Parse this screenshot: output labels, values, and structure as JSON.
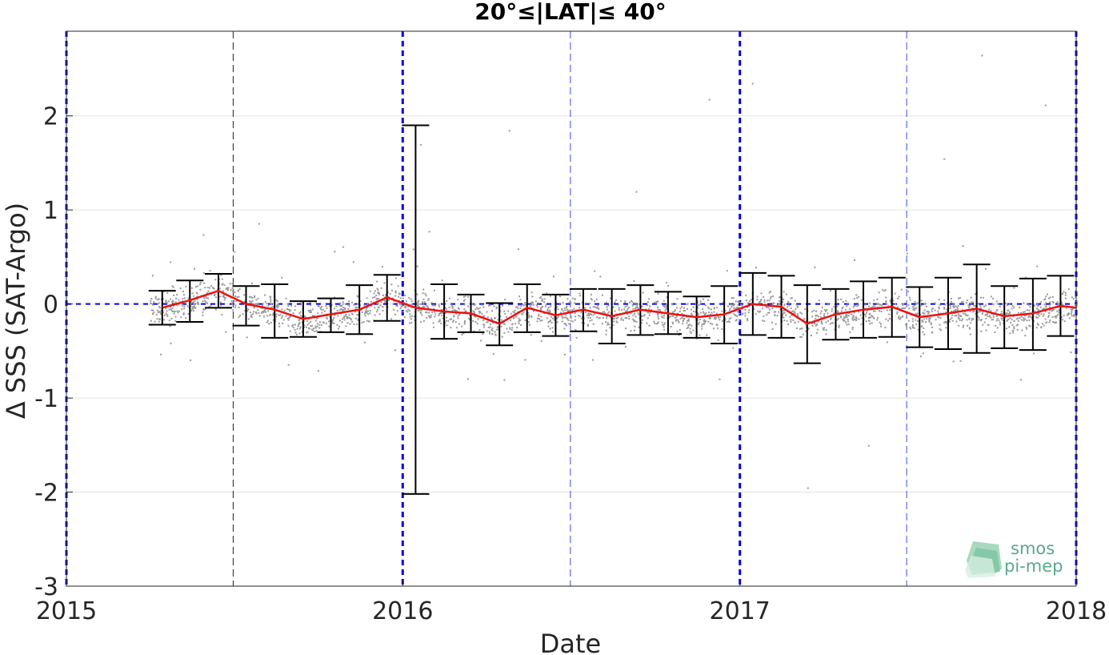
{
  "chart_data": {
    "type": "scatter",
    "title": "20°≤|LAT|≤ 40°",
    "xlabel": "Date",
    "ylabel": "Δ SSS (SAT-Argo)",
    "xlim": [
      "2015-01-01",
      "2018-01-01"
    ],
    "ylim": [
      -3,
      2.9
    ],
    "x_ticks": [
      "2015",
      "2016",
      "2017",
      "2018"
    ],
    "y_ticks": [
      -3,
      -2,
      -1,
      0,
      1,
      2
    ],
    "grid": "horizontal",
    "reference_lines": {
      "zero_line": 0,
      "year_boundaries": [
        "2015-01-01",
        "2016-01-01",
        "2017-01-01",
        "2018-01-01"
      ],
      "mid_year_lines": [
        "2015-07-01",
        "2016-07-01",
        "2017-07-01"
      ]
    },
    "colors": {
      "points": "#9a9a9a",
      "mean_line": "#ee1111",
      "error_bars": "#000000",
      "reference_lines": "#0000ee",
      "logo": "#5aa98a"
    },
    "series": [
      {
        "type": "line_with_errorbars",
        "x": [
          "2015-04-15",
          "2015-05-15",
          "2015-06-15",
          "2015-07-15",
          "2015-08-15",
          "2015-09-15",
          "2015-10-15",
          "2015-11-15",
          "2015-12-15",
          "2016-01-15",
          "2016-02-15",
          "2016-03-15",
          "2016-04-15",
          "2016-05-15",
          "2016-06-15",
          "2016-07-15",
          "2016-08-15",
          "2016-09-15",
          "2016-10-15",
          "2016-11-15",
          "2016-12-15",
          "2017-01-15",
          "2017-02-15",
          "2017-03-15",
          "2017-04-15",
          "2017-05-15",
          "2017-06-15",
          "2017-07-15",
          "2017-08-15",
          "2017-09-15",
          "2017-10-15",
          "2017-11-15",
          "2017-12-15",
          "2018-01-01"
        ],
        "values": [
          -0.04,
          0.04,
          0.14,
          0.0,
          -0.06,
          -0.16,
          -0.11,
          -0.06,
          0.07,
          -0.04,
          -0.08,
          -0.1,
          -0.21,
          -0.04,
          -0.12,
          -0.06,
          -0.13,
          -0.06,
          -0.1,
          -0.14,
          -0.11,
          0.0,
          -0.03,
          -0.21,
          -0.11,
          -0.06,
          -0.03,
          -0.14,
          -0.1,
          -0.05,
          -0.13,
          -0.1,
          -0.02,
          -0.04
        ],
        "upper": [
          0.14,
          0.25,
          0.32,
          0.19,
          0.21,
          0.03,
          0.06,
          0.2,
          0.31,
          1.9,
          0.21,
          0.1,
          0.01,
          0.21,
          0.1,
          0.16,
          0.16,
          0.2,
          0.13,
          0.08,
          0.19,
          0.33,
          0.3,
          0.2,
          0.16,
          0.24,
          0.28,
          0.18,
          0.28,
          0.42,
          0.19,
          0.27,
          0.3,
          null
        ],
        "lower": [
          -0.22,
          -0.19,
          -0.04,
          -0.23,
          -0.36,
          -0.35,
          -0.3,
          -0.32,
          -0.18,
          -2.02,
          -0.37,
          -0.3,
          -0.44,
          -0.3,
          -0.34,
          -0.29,
          -0.42,
          -0.33,
          -0.32,
          -0.36,
          -0.42,
          -0.33,
          -0.36,
          -0.63,
          -0.38,
          -0.36,
          -0.35,
          -0.46,
          -0.48,
          -0.52,
          -0.47,
          -0.49,
          -0.34,
          null
        ]
      },
      {
        "type": "scatter_cloud",
        "description_is_visual": true,
        "x_range": [
          "2015-04-01",
          "2018-01-01"
        ],
        "typical_y_range": [
          -0.6,
          0.6
        ],
        "outlier_range": [
          -1.95,
          2.65
        ]
      }
    ]
  },
  "logo": {
    "line1": "smos",
    "line2": "pi-mep"
  }
}
